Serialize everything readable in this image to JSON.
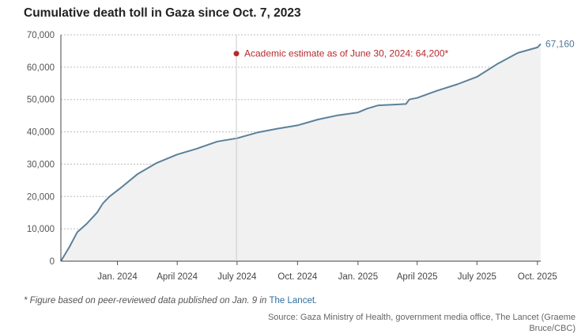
{
  "title": "Cumulative death toll in Gaza since Oct. 7, 2023",
  "chart_data": {
    "type": "area",
    "x_start": "2023-10-07",
    "x_end": "2025-10-06",
    "ylim": [
      0,
      70000
    ],
    "yticks": [
      0,
      10000,
      20000,
      30000,
      40000,
      50000,
      60000,
      70000
    ],
    "ytick_labels": [
      "0",
      "10,000",
      "20,000",
      "30,000",
      "40,000",
      "50,000",
      "60,000",
      "70,000"
    ],
    "xticks": [
      {
        "date": "2024-01-01",
        "label": "Jan. 2024"
      },
      {
        "date": "2024-04-01",
        "label": "April 2024"
      },
      {
        "date": "2024-07-01",
        "label": "July 2024"
      },
      {
        "date": "2024-10-01",
        "label": "Oct. 2024"
      },
      {
        "date": "2025-01-01",
        "label": "Jan. 2025"
      },
      {
        "date": "2025-04-01",
        "label": "April 2025"
      },
      {
        "date": "2025-07-01",
        "label": "July 2025"
      },
      {
        "date": "2025-10-01",
        "label": "Oct. 2025"
      }
    ],
    "grid": true,
    "series": [
      {
        "x": [
          "2023-10-07",
          "2023-10-20",
          "2023-11-01",
          "2023-11-15",
          "2023-12-01",
          "2023-12-10",
          "2023-12-20",
          "2024-01-05",
          "2024-02-01",
          "2024-03-01",
          "2024-04-01",
          "2024-05-01",
          "2024-06-01",
          "2024-07-01",
          "2024-08-01",
          "2024-09-01",
          "2024-10-01",
          "2024-11-01",
          "2024-12-01",
          "2025-01-01",
          "2025-01-15",
          "2025-02-01",
          "2025-03-15",
          "2025-03-20",
          "2025-04-01",
          "2025-05-01",
          "2025-06-01",
          "2025-07-01",
          "2025-08-01",
          "2025-09-01",
          "2025-10-01",
          "2025-10-06"
        ],
        "y": [
          0,
          4400,
          9000,
          11500,
          15000,
          17900,
          20000,
          22500,
          27000,
          30400,
          33000,
          34800,
          37000,
          38000,
          39800,
          41000,
          42000,
          43800,
          45100,
          46000,
          47200,
          48200,
          48600,
          50000,
          50500,
          52700,
          54700,
          57000,
          61000,
          64400,
          66100,
          67160
        ]
      }
    ],
    "end_label": "67,160",
    "annotation": {
      "date": "2024-06-30",
      "value": 64200,
      "text": "Academic estimate as of June 30, 2024: 64,200*"
    }
  },
  "colors": {
    "line": "#5b8199",
    "area": "#f1f1f1",
    "annotation": "#b52a2e",
    "grid": "#bdbdbd"
  },
  "footnote": {
    "text": "* Figure based on peer-reviewed data published on Jan. 9 in ",
    "link": "The Lancet",
    "end": "."
  },
  "source": "Source: Gaza Ministry of Health, government media office, The Lancet (Graeme Bruce/CBC)"
}
